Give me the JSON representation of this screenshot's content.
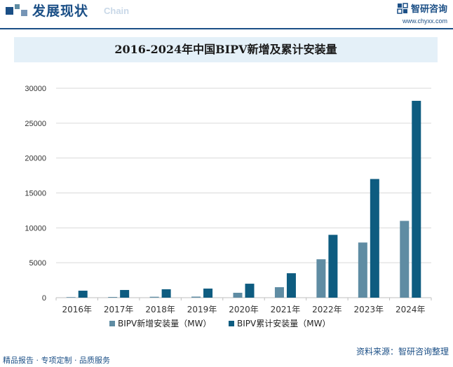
{
  "header": {
    "section_title": "发展现状",
    "section_subtitle": "Chain",
    "brand_name": "智研咨询",
    "brand_url": "www.chyxx.com"
  },
  "footer": {
    "services": "精品报告 · 专项定制 · 品质服务",
    "source": "资料来源：智研咨询整理"
  },
  "colors": {
    "brand_blue": "#1b4f86",
    "series_new": "#5f8ca3",
    "series_cumulative": "#0e5c80"
  },
  "chart_data": {
    "type": "bar",
    "title": "2016-2024年中国BIPV新增及累计安装量",
    "categories": [
      "2016年",
      "2017年",
      "2018年",
      "2019年",
      "2020年",
      "2021年",
      "2022年",
      "2023年",
      "2024年"
    ],
    "series": [
      {
        "name": "BIPV新增安装量（MW）",
        "values": [
          80,
          100,
          130,
          150,
          700,
          1500,
          5500,
          7900,
          11000
        ]
      },
      {
        "name": "BIPV累计安装量（MW）",
        "values": [
          1000,
          1100,
          1200,
          1300,
          2000,
          3500,
          9000,
          17000,
          28200
        ]
      }
    ],
    "yticks": [
      0,
      5000,
      10000,
      15000,
      20000,
      25000,
      30000
    ],
    "ylim": [
      0,
      30000
    ],
    "xlabel": "",
    "ylabel": "",
    "grid": true,
    "legend_position": "bottom"
  }
}
